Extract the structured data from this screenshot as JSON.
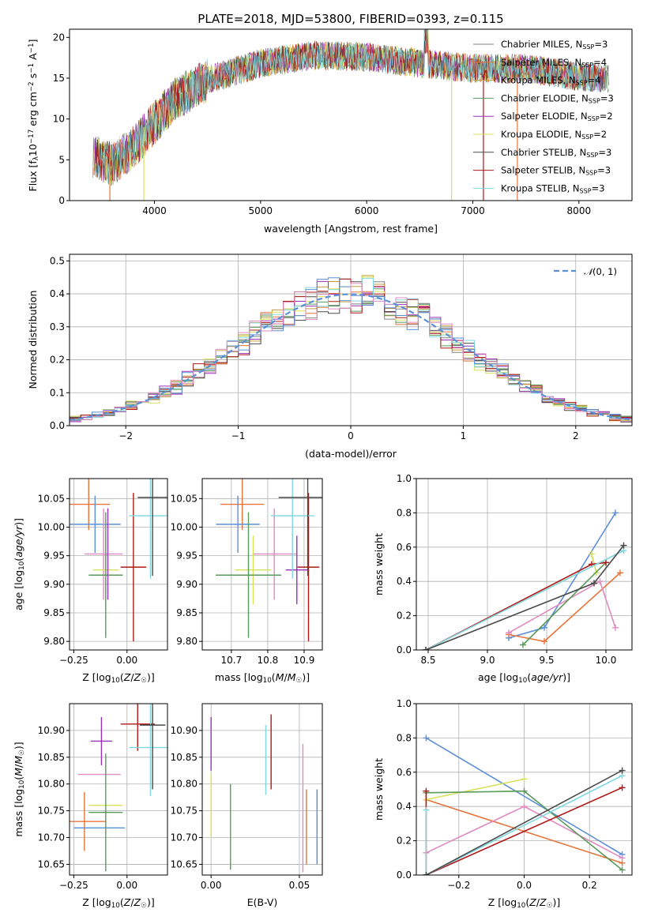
{
  "title": "PLATE=2018, MJD=53800, FIBERID=0393, z=0.115",
  "colors": {
    "Chabrier MILES": "#808080",
    "Salpeter MILES": "#e8743b",
    "Kroupa MILES": "#c59a3a",
    "Chabrier ELODIE": "#5a9a5a",
    "Salpeter ELODIE": "#9b30b8",
    "Kroupa ELODIE": "#d8e05a",
    "Chabrier STELIB": "#4a4a4a",
    "Salpeter STELIB": "#b01818",
    "Kroupa STELIB": "#7fd8e0",
    "gaussian": "#5b8fd6"
  },
  "chart_data": [
    {
      "id": "spectrum",
      "type": "line",
      "title": "PLATE=2018, MJD=53800, FIBERID=0393, z=0.115",
      "xlabel": "wavelength [Angstrom, rest frame]",
      "ylabel": "Flux [f_λ 10^-17 erg cm^-2 s^-1 A^-1]",
      "xlim": [
        3200,
        8500
      ],
      "ylim": [
        0,
        21
      ],
      "xticks": [
        4000,
        5000,
        6000,
        7000,
        8000
      ],
      "yticks": [
        0,
        5,
        10,
        15,
        20
      ],
      "legend_position": "upper right",
      "continuum": [
        [
          3420,
          5.5
        ],
        [
          3600,
          4.5
        ],
        [
          3800,
          6.5
        ],
        [
          4000,
          9.5
        ],
        [
          4200,
          12.5
        ],
        [
          4500,
          14.8
        ],
        [
          5000,
          16.8
        ],
        [
          5500,
          17.8
        ],
        [
          6000,
          17.6
        ],
        [
          6500,
          16.8
        ],
        [
          7000,
          16.2
        ],
        [
          7500,
          16.2
        ],
        [
          8000,
          15.2
        ],
        [
          8280,
          15.0
        ]
      ],
      "cutoffs": [
        [
          3580,
          0
        ],
        [
          3900,
          0
        ],
        [
          6800,
          0
        ],
        [
          7100,
          0
        ],
        [
          7420,
          0
        ]
      ],
      "series": [
        {
          "name": "Chabrier MILES, N_SSP=3",
          "color": "#808080"
        },
        {
          "name": "Salpeter MILES, N_SSP=4",
          "color": "#e8743b"
        },
        {
          "name": "Kroupa MILES, N_SSP=4",
          "color": "#c59a3a"
        },
        {
          "name": "Chabrier ELODIE, N_SSP=3",
          "color": "#5a9a5a"
        },
        {
          "name": "Salpeter ELODIE, N_SSP=2",
          "color": "#9b30b8"
        },
        {
          "name": "Kroupa ELODIE, N_SSP=2",
          "color": "#d8e05a"
        },
        {
          "name": "Chabrier STELIB, N_SSP=3",
          "color": "#4a4a4a"
        },
        {
          "name": "Salpeter STELIB, N_SSP=3",
          "color": "#b01818"
        },
        {
          "name": "Kroupa STELIB, N_SSP=3",
          "color": "#7fd8e0"
        }
      ],
      "legend": [
        "Chabrier MILES, N_SSP=3",
        "Salpeter MILES, N_SSP=4",
        "Kroupa MILES, N_SSP=4",
        "Chabrier ELODIE, N_SSP=3",
        "Salpeter ELODIE, N_SSP=2",
        "Kroupa ELODIE, N_SSP=2",
        "Chabrier STELIB, N_SSP=3",
        "Salpeter STELIB, N_SSP=3",
        "Kroupa STELIB, N_SSP=3"
      ]
    },
    {
      "id": "residuals",
      "type": "line",
      "xlabel": "(data-model)/error",
      "ylabel": "Normed distribution",
      "xlim": [
        -2.5,
        2.5
      ],
      "ylim": [
        0,
        0.52
      ],
      "xticks": [
        -2,
        -1,
        0,
        1,
        2
      ],
      "yticks": [
        0.0,
        0.1,
        0.2,
        0.3,
        0.4,
        0.5
      ],
      "grid": true,
      "legend": [
        "N(0,1)"
      ],
      "legend_position": "upper right",
      "bin_width": 0.1,
      "bin_start": -2.5,
      "series": [
        {
          "name": "Chabrier MILES",
          "color": "#808080",
          "seed": 1
        },
        {
          "name": "Salpeter MILES",
          "color": "#e8743b",
          "seed": 2
        },
        {
          "name": "Kroupa MILES",
          "color": "#c59a3a",
          "seed": 3
        },
        {
          "name": "Chabrier ELODIE",
          "color": "#5a9a5a",
          "seed": 4
        },
        {
          "name": "Salpeter ELODIE",
          "color": "#9b30b8",
          "seed": 5
        },
        {
          "name": "Kroupa ELODIE",
          "color": "#d8e05a",
          "seed": 6
        },
        {
          "name": "Chabrier STELIB",
          "color": "#4a4a4a",
          "seed": 7
        },
        {
          "name": "Salpeter STELIB",
          "color": "#b01818",
          "seed": 8
        },
        {
          "name": "Kroupa STELIB",
          "color": "#7fd8e0",
          "seed": 9
        },
        {
          "name": "blue",
          "color": "#5b8fd6",
          "seed": 10
        },
        {
          "name": "pink",
          "color": "#e08ac0",
          "seed": 11
        }
      ]
    },
    {
      "id": "age-vs-Z",
      "type": "scatter",
      "xlabel": "Z [log10(Z/Z☉)]",
      "ylabel": "age [log10(age/yr)]",
      "xlim": [
        -0.27,
        0.19
      ],
      "ylim": [
        9.785,
        10.085
      ],
      "xticks": [
        -0.25,
        0.0
      ],
      "yticks": [
        9.8,
        9.85,
        9.9,
        9.95,
        10.0,
        10.05
      ],
      "grid": true,
      "points": [
        {
          "color": "#e8743b",
          "x": -0.18,
          "xerr": 0.1,
          "y": 10.04,
          "yerr": 0.045
        },
        {
          "color": "#5b8fd6",
          "x": -0.15,
          "xerr": 0.12,
          "y": 10.005,
          "yerr": 0.05
        },
        {
          "color": "#e08ac0",
          "x": -0.11,
          "xerr": 0.09,
          "y": 9.953,
          "yerr": 0.08
        },
        {
          "color": "#d8e05a",
          "x": -0.1,
          "xerr": 0.06,
          "y": 9.925,
          "yerr": 0.06
        },
        {
          "color": "#5a9a5a",
          "x": -0.1,
          "xerr": 0.08,
          "y": 9.916,
          "yerr": 0.11
        },
        {
          "color": "#9b30b8",
          "x": -0.09,
          "xerr": 0.0,
          "y": 9.953,
          "yerr": 0.08
        },
        {
          "color": "#b01818",
          "x": 0.03,
          "xerr": 0.06,
          "y": 9.93,
          "yerr": 0.13
        },
        {
          "color": "#7fd8e0",
          "x": 0.11,
          "xerr": 0.1,
          "y": 10.02,
          "yerr": 0.11
        },
        {
          "color": "#4a4a4a",
          "x": 0.12,
          "xerr": 0.07,
          "y": 10.052,
          "yerr": 0.137
        }
      ]
    },
    {
      "id": "age-vs-mass",
      "type": "scatter",
      "xlabel": "mass [log10(M/M☉)]",
      "ylabel": "",
      "xlim": [
        10.62,
        10.95
      ],
      "ylim": [
        9.785,
        10.085
      ],
      "xticks": [
        10.7,
        10.8,
        10.9
      ],
      "yticks": [
        9.8,
        9.85,
        9.9,
        9.95,
        10.0,
        10.05
      ],
      "grid": true,
      "points": [
        {
          "color": "#e8743b",
          "x": 10.73,
          "xerr": 0.06,
          "y": 10.04,
          "yerr": 0.045
        },
        {
          "color": "#5b8fd6",
          "x": 10.718,
          "xerr": 0.06,
          "y": 10.005,
          "yerr": 0.05
        },
        {
          "color": "#e08ac0",
          "x": 10.818,
          "xerr": 0.06,
          "y": 9.953,
          "yerr": 0.08
        },
        {
          "color": "#d8e05a",
          "x": 10.76,
          "xerr": 0.05,
          "y": 9.925,
          "yerr": 0.06
        },
        {
          "color": "#5a9a5a",
          "x": 10.747,
          "xerr": 0.09,
          "y": 9.916,
          "yerr": 0.11
        },
        {
          "color": "#9b30b8",
          "x": 10.88,
          "xerr": 0.03,
          "y": 9.925,
          "yerr": 0.06
        },
        {
          "color": "#b01818",
          "x": 10.912,
          "xerr": 0.03,
          "y": 9.93,
          "yerr": 0.13
        },
        {
          "color": "#7fd8e0",
          "x": 10.868,
          "xerr": 0.06,
          "y": 10.02,
          "yerr": 0.11
        },
        {
          "color": "#4a4a4a",
          "x": 10.91,
          "xerr": 0.08,
          "y": 10.052,
          "yerr": 0.137
        }
      ]
    },
    {
      "id": "weight-vs-age",
      "type": "line",
      "xlabel": "age [log10(age/yr)]",
      "ylabel": "mass weight",
      "xlim": [
        8.4,
        10.22
      ],
      "ylim": [
        0,
        1.0
      ],
      "xticks": [
        8.5,
        9.0,
        9.5,
        10.0
      ],
      "yticks": [
        0.0,
        0.2,
        0.4,
        0.6,
        0.8,
        1.0
      ],
      "grid": true,
      "series": [
        {
          "color": "#5b8fd6",
          "points": [
            [
              9.18,
              0.07
            ],
            [
              9.48,
              0.13
            ],
            [
              10.08,
              0.8
            ]
          ]
        },
        {
          "color": "#e8743b",
          "points": [
            [
              9.18,
              0.09
            ],
            [
              9.48,
              0.05
            ],
            [
              10.12,
              0.45
            ]
          ]
        },
        {
          "color": "#e08ac0",
          "points": [
            [
              9.18,
              0.1
            ],
            [
              9.95,
              0.4
            ],
            [
              10.08,
              0.13
            ]
          ]
        },
        {
          "color": "#d8e05a",
          "points": [
            [
              9.88,
              0.56
            ],
            [
              9.92,
              0.45
            ]
          ]
        },
        {
          "color": "#5a9a5a",
          "points": [
            [
              9.3,
              0.03
            ],
            [
              10.0,
              0.51
            ]
          ]
        },
        {
          "color": "#b01818",
          "points": [
            [
              8.48,
              0.0
            ],
            [
              9.88,
              0.5
            ],
            [
              10.0,
              0.51
            ]
          ]
        },
        {
          "color": "#7fd8e0",
          "points": [
            [
              8.48,
              0.0
            ],
            [
              10.15,
              0.58
            ]
          ]
        },
        {
          "color": "#4a4a4a",
          "points": [
            [
              8.48,
              0.0
            ],
            [
              9.9,
              0.39
            ],
            [
              10.15,
              0.61
            ]
          ]
        }
      ]
    },
    {
      "id": "mass-vs-Z",
      "type": "scatter",
      "xlabel": "Z [log10(Z/Z☉)]",
      "ylabel": "mass [log10(M/M☉)]",
      "xlim": [
        -0.27,
        0.19
      ],
      "ylim": [
        10.63,
        10.95
      ],
      "xticks": [
        -0.25,
        0.0
      ],
      "yticks": [
        10.65,
        10.7,
        10.75,
        10.8,
        10.85,
        10.9
      ],
      "grid": true,
      "points": [
        {
          "color": "#e8743b",
          "x": -0.2,
          "xerr": 0.1,
          "y": 10.73,
          "yerr": 0.055
        },
        {
          "color": "#5b8fd6",
          "x": -0.13,
          "xerr": 0.12,
          "y": 10.718,
          "yerr": 0.0
        },
        {
          "color": "#e08ac0",
          "x": -0.13,
          "xerr": 0.1,
          "y": 10.818,
          "yerr": 0.0
        },
        {
          "color": "#d8e05a",
          "x": -0.1,
          "xerr": 0.08,
          "y": 10.76,
          "yerr": 0.0
        },
        {
          "color": "#5a9a5a",
          "x": -0.1,
          "xerr": 0.08,
          "y": 10.747,
          "yerr": 0.11
        },
        {
          "color": "#9b30b8",
          "x": -0.12,
          "xerr": 0.05,
          "y": 10.88,
          "yerr": 0.045
        },
        {
          "color": "#b01818",
          "x": 0.05,
          "xerr": 0.08,
          "y": 10.912,
          "yerr": 0.05
        },
        {
          "color": "#7fd8e0",
          "x": 0.11,
          "xerr": 0.1,
          "y": 10.868,
          "yerr": 0.09
        },
        {
          "color": "#4a4a4a",
          "x": 0.12,
          "xerr": 0.06,
          "y": 10.91,
          "yerr": 0.12
        }
      ]
    },
    {
      "id": "mass-vs-EBV",
      "type": "scatter",
      "xlabel": "E(B-V)",
      "ylabel": "",
      "xlim": [
        -0.005,
        0.063
      ],
      "ylim": [
        10.63,
        10.95
      ],
      "xticks": [
        0.0,
        0.05
      ],
      "yticks": [
        10.65,
        10.7,
        10.75,
        10.8,
        10.85,
        10.9
      ],
      "grid": true,
      "points": [
        {
          "color": "#9b30b8",
          "x": 0.0,
          "y": 10.875,
          "yerr": 0.05
        },
        {
          "color": "#d8e05a",
          "x": 0.0,
          "y": 10.76,
          "yerr": 0.06
        },
        {
          "color": "#5a9a5a",
          "x": 0.011,
          "y": 10.72,
          "yerr": 0.08
        },
        {
          "color": "#7fd8e0",
          "x": 0.031,
          "y": 10.845,
          "yerr": 0.065
        },
        {
          "color": "#b01818",
          "x": 0.034,
          "y": 10.86,
          "yerr": 0.07
        },
        {
          "color": "#e08ac0",
          "x": 0.052,
          "y": 10.755,
          "yerr": 0.12
        },
        {
          "color": "#e8743b",
          "x": 0.054,
          "y": 10.72,
          "yerr": 0.07
        },
        {
          "color": "#5b8fd6",
          "x": 0.06,
          "y": 10.72,
          "yerr": 0.07
        }
      ]
    },
    {
      "id": "weight-vs-Z",
      "type": "line",
      "xlabel": "Z [log10(Z/Z☉)]",
      "ylabel": "mass weight",
      "xlim": [
        -0.33,
        0.33
      ],
      "ylim": [
        0,
        1.0
      ],
      "xticks": [
        -0.2,
        0.0,
        0.2
      ],
      "yticks": [
        0.0,
        0.2,
        0.4,
        0.6,
        0.8,
        1.0
      ],
      "grid": true,
      "series": [
        {
          "color": "#5b8fd6",
          "points": [
            [
              -0.3,
              0.8
            ],
            [
              0.3,
              0.12
            ]
          ]
        },
        {
          "color": "#e8743b",
          "points": [
            [
              -0.3,
              0.44
            ],
            [
              0.3,
              0.07
            ]
          ]
        },
        {
          "color": "#e08ac0",
          "points": [
            [
              -0.3,
              0.13
            ],
            [
              0.0,
              0.4
            ],
            [
              0.3,
              0.1
            ]
          ]
        },
        {
          "color": "#d8e05a",
          "points": [
            [
              -0.3,
              0.44
            ],
            [
              0.0,
              0.56
            ]
          ]
        },
        {
          "color": "#5a9a5a",
          "points": [
            [
              -0.3,
              0.48
            ],
            [
              0.0,
              0.49
            ],
            [
              0.3,
              0.03
            ]
          ]
        },
        {
          "color": "#b01818",
          "points": [
            [
              -0.3,
              0.49
            ],
            [
              -0.3,
              0.0
            ],
            [
              0.3,
              0.51
            ]
          ]
        },
        {
          "color": "#7fd8e0",
          "points": [
            [
              -0.3,
              0.38
            ],
            [
              -0.3,
              0.0
            ],
            [
              0.3,
              0.58
            ]
          ]
        },
        {
          "color": "#4a4a4a",
          "points": [
            [
              -0.3,
              0.0
            ],
            [
              0.3,
              0.61
            ]
          ]
        }
      ]
    }
  ]
}
